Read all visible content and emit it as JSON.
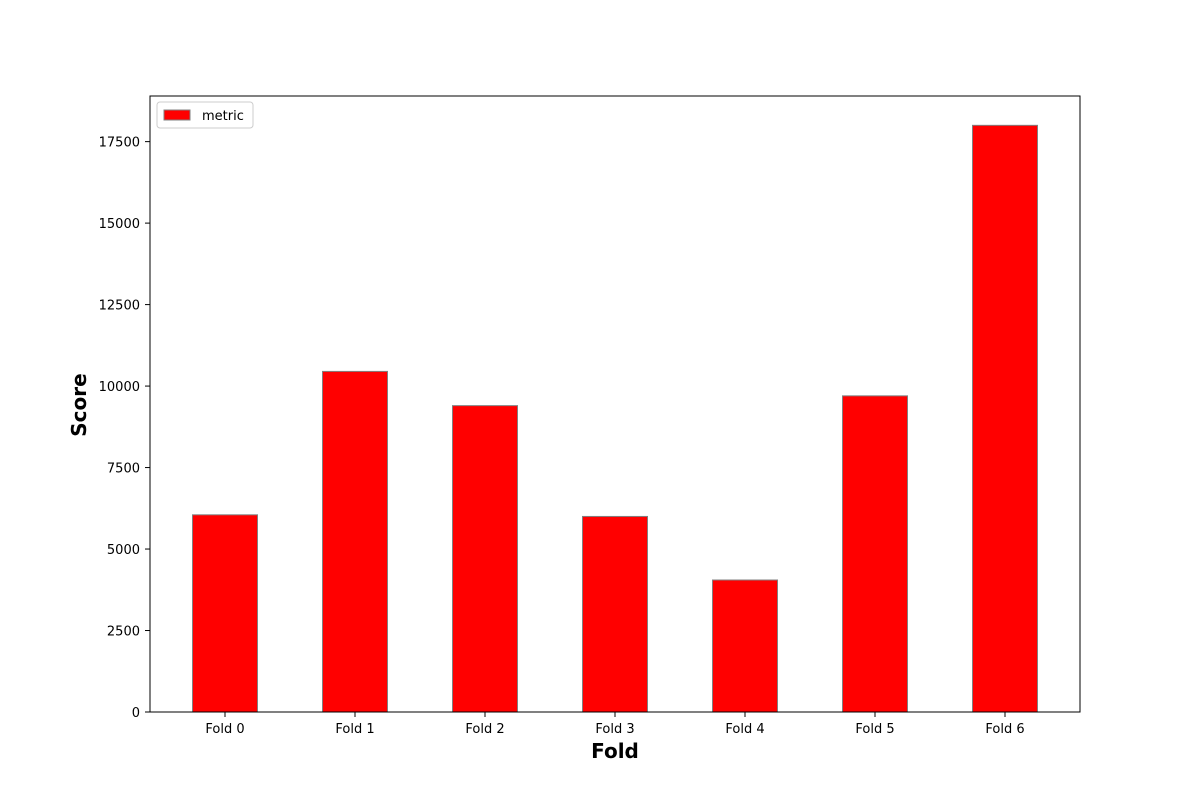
{
  "chart_data": {
    "type": "bar",
    "title": "",
    "xlabel": "Fold",
    "ylabel": "Score",
    "categories": [
      "Fold 0",
      "Fold 1",
      "Fold 2",
      "Fold 3",
      "Fold 4",
      "Fold 5",
      "Fold 6"
    ],
    "series": [
      {
        "name": "metric",
        "color": "#ff0000",
        "edge_color": "#808080",
        "values": [
          6050,
          10450,
          9400,
          6000,
          4050,
          9700,
          18000
        ]
      }
    ],
    "ylim": [
      0,
      18900
    ],
    "yticks": [
      0,
      2500,
      5000,
      7500,
      10000,
      12500,
      15000,
      17500
    ],
    "grid": false,
    "legend_position": "top-left"
  }
}
